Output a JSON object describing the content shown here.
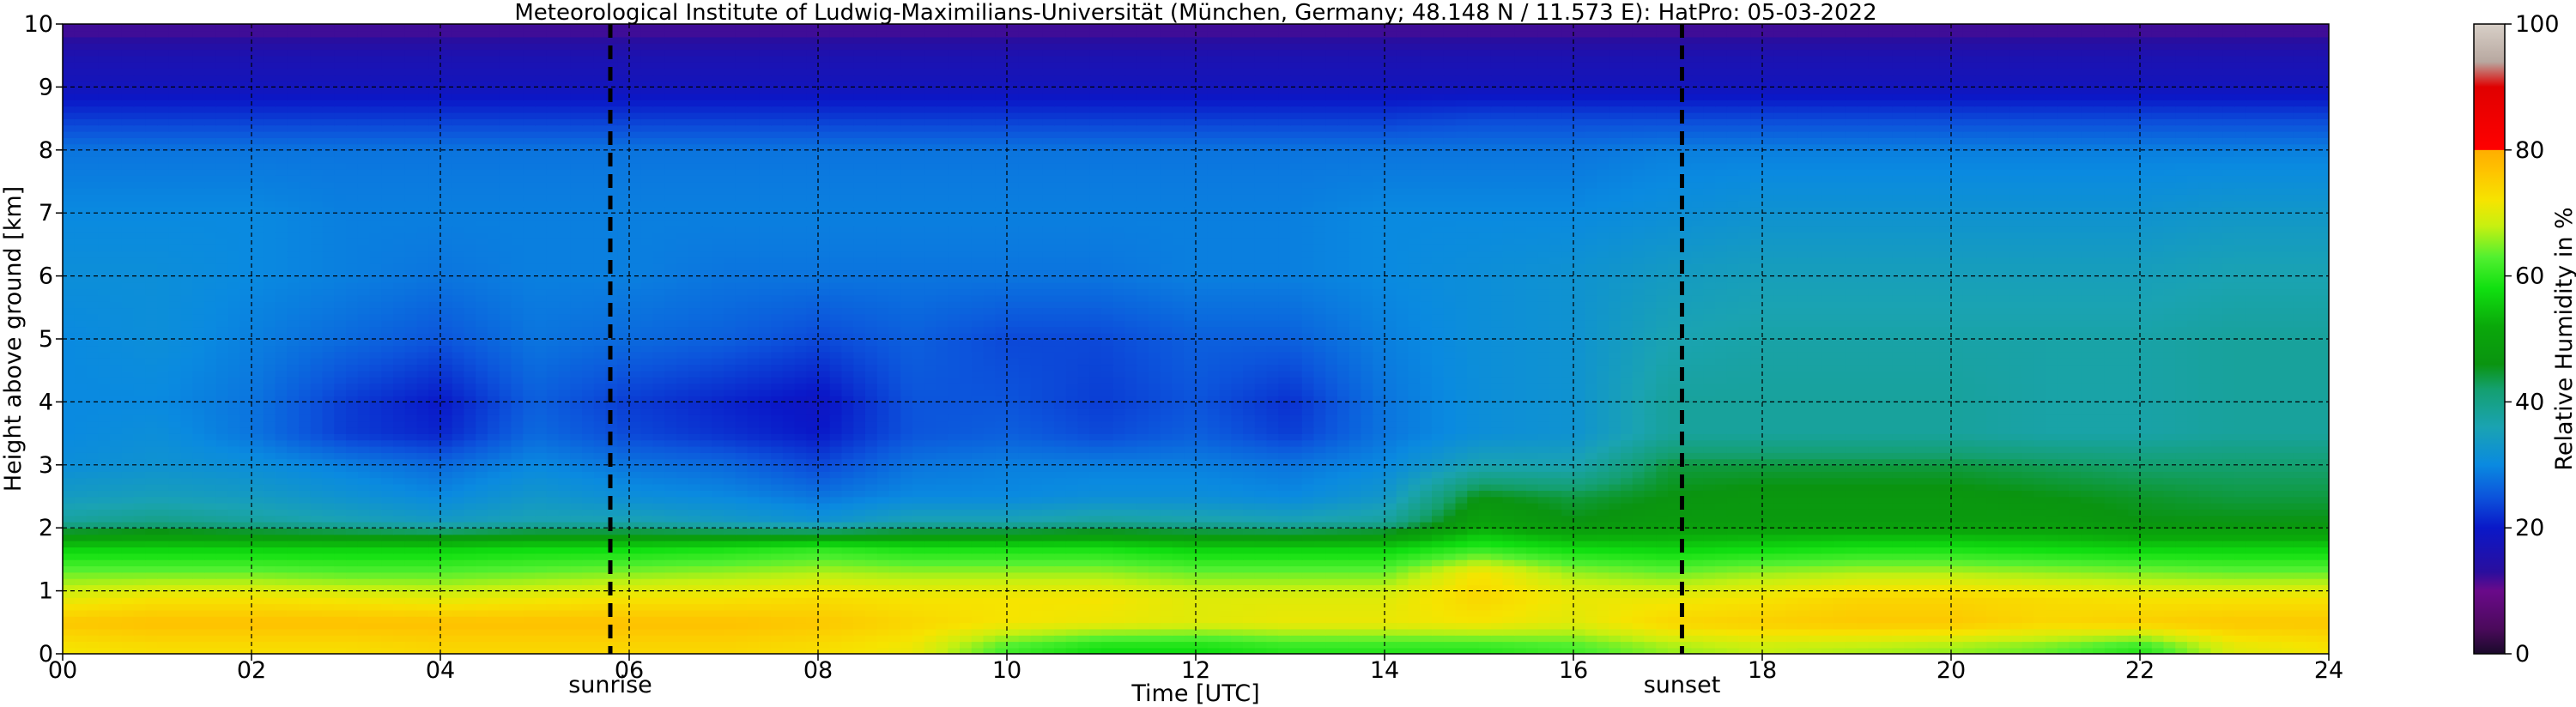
{
  "chart_data": {
    "type": "heatmap",
    "title": "Meteorological Institute of Ludwig-Maximilians-Universität (München, Germany; 48.148 N / 11.573 E):     HatPro: 05-03-2022",
    "xlabel": "Time [UTC]",
    "ylabel": "Height above ground [km]",
    "xlim": [
      0,
      24
    ],
    "ylim": [
      0,
      10
    ],
    "x_ticks": [
      "00",
      "02",
      "04",
      "06",
      "08",
      "10",
      "12",
      "14",
      "16",
      "18",
      "20",
      "22",
      "24"
    ],
    "x_tick_values": [
      0,
      2,
      4,
      6,
      8,
      10,
      12,
      14,
      16,
      18,
      20,
      22,
      24
    ],
    "y_ticks": [
      "0",
      "1",
      "2",
      "3",
      "4",
      "5",
      "6",
      "7",
      "8",
      "9",
      "10"
    ],
    "y_tick_values": [
      0,
      1,
      2,
      3,
      4,
      5,
      6,
      7,
      8,
      9,
      10
    ],
    "grid": true,
    "colorbar": {
      "label": "Relative Humidity in %",
      "range": [
        0,
        100
      ],
      "ticks": [
        "0",
        "20",
        "40",
        "60",
        "80",
        "100"
      ],
      "tick_values": [
        0,
        20,
        40,
        60,
        80,
        100
      ]
    },
    "annotations": [
      {
        "label": "sunrise",
        "x": 5.8
      },
      {
        "label": "sunset",
        "x": 17.15
      }
    ],
    "time_hours": [
      0,
      1,
      2,
      3,
      4,
      5,
      6,
      7,
      8,
      9,
      10,
      11,
      12,
      13,
      14,
      15,
      16,
      17,
      18,
      19,
      20,
      21,
      22,
      23,
      24
    ],
    "height_km": [
      0.1,
      0.5,
      0.9,
      1.3,
      1.7,
      2.1,
      2.5,
      3,
      3.5,
      4,
      5,
      6,
      7,
      8,
      8.5,
      9,
      9.5,
      9.85
    ],
    "relative_humidity": [
      [
        72,
        73,
        73,
        73,
        74,
        74,
        74,
        74,
        73,
        71,
        62,
        58,
        58,
        60,
        60,
        60,
        62,
        66,
        68,
        67,
        66,
        64,
        60,
        70,
        72
      ],
      [
        76,
        77,
        77,
        77,
        77,
        77,
        77,
        77,
        76,
        74,
        72,
        71,
        70,
        71,
        71,
        72,
        70,
        74,
        75,
        76,
        76,
        74,
        75,
        76,
        76
      ],
      [
        70,
        72,
        72,
        71,
        70,
        71,
        72,
        72,
        73,
        72,
        72,
        72,
        70,
        70,
        70,
        74,
        71,
        71,
        72,
        74,
        74,
        73,
        72,
        72,
        72
      ],
      [
        64,
        64,
        64,
        63,
        63,
        64,
        65,
        66,
        67,
        66,
        66,
        66,
        64,
        64,
        64,
        72,
        66,
        64,
        66,
        67,
        67,
        66,
        65,
        64,
        64
      ],
      [
        56,
        56,
        56,
        56,
        56,
        57,
        57,
        58,
        60,
        58,
        58,
        58,
        56,
        56,
        56,
        60,
        57,
        56,
        57,
        58,
        58,
        57,
        56,
        56,
        56
      ],
      [
        38,
        40,
        38,
        36,
        34,
        36,
        36,
        34,
        32,
        36,
        36,
        38,
        37,
        36,
        38,
        50,
        46,
        48,
        48,
        48,
        48,
        48,
        46,
        46,
        46
      ],
      [
        34,
        35,
        34,
        32,
        30,
        33,
        31,
        30,
        28,
        30,
        30,
        31,
        31,
        30,
        33,
        46,
        44,
        46,
        47,
        47,
        47,
        46,
        45,
        44,
        44
      ],
      [
        31,
        32,
        31,
        29,
        27,
        30,
        28,
        27,
        24,
        28,
        29,
        29,
        29,
        28,
        30,
        36,
        36,
        44,
        44,
        44,
        44,
        43,
        42,
        42,
        42
      ],
      [
        30,
        31,
        28,
        23,
        21,
        27,
        24,
        22,
        20,
        25,
        26,
        24,
        26,
        23,
        28,
        31,
        32,
        38,
        38,
        38,
        38,
        37,
        37,
        38,
        38
      ],
      [
        30,
        30,
        28,
        23,
        20,
        26,
        23,
        21,
        19,
        25,
        25,
        23,
        25,
        22,
        28,
        31,
        32,
        38,
        38,
        38,
        38,
        37,
        37,
        38,
        38
      ],
      [
        30,
        31,
        29,
        27,
        25,
        28,
        27,
        26,
        24,
        26,
        24,
        24,
        26,
        26,
        29,
        31,
        32,
        36,
        37,
        37,
        37,
        37,
        37,
        38,
        38
      ],
      [
        31,
        31,
        30,
        29,
        28,
        29,
        29,
        28,
        28,
        28,
        28,
        28,
        29,
        29,
        30,
        31,
        32,
        34,
        35,
        35,
        35,
        35,
        35,
        36,
        36
      ],
      [
        30,
        30,
        30,
        29,
        29,
        29,
        29,
        29,
        29,
        29,
        29,
        29,
        29,
        29,
        30,
        30,
        30,
        31,
        32,
        32,
        32,
        32,
        32,
        33,
        33
      ],
      [
        28,
        28,
        28,
        28,
        28,
        28,
        28,
        28,
        28,
        28,
        28,
        28,
        28,
        28,
        28,
        28,
        28,
        29,
        29,
        29,
        29,
        29,
        29,
        29,
        29
      ],
      [
        23,
        23,
        23,
        23,
        23,
        23,
        23,
        23,
        23,
        23,
        23,
        23,
        23,
        23,
        23,
        24,
        24,
        24,
        24,
        24,
        24,
        24,
        24,
        24,
        24
      ],
      [
        18,
        18,
        18,
        18,
        18,
        18,
        18,
        18,
        18,
        18,
        18,
        18,
        18,
        18,
        18,
        18,
        18,
        18,
        18,
        18,
        18,
        18,
        18,
        18,
        18
      ],
      [
        16,
        16,
        16,
        16,
        16,
        16,
        16,
        16,
        16,
        16,
        16,
        16,
        16,
        16,
        16,
        16,
        16,
        16,
        16,
        16,
        16,
        16,
        16,
        16,
        16
      ],
      [
        12,
        12,
        12,
        12,
        12,
        12,
        12,
        12,
        12,
        12,
        12,
        12,
        12,
        12,
        12,
        12,
        12,
        12,
        12,
        12,
        12,
        12,
        12,
        12,
        12
      ]
    ],
    "colormap": [
      {
        "v": 0,
        "c": "#1a0a2a"
      },
      {
        "v": 4,
        "c": "#4b0a5c"
      },
      {
        "v": 10,
        "c": "#6a0a8a"
      },
      {
        "v": 13,
        "c": "#2a0e9e"
      },
      {
        "v": 20,
        "c": "#0a18c8"
      },
      {
        "v": 25,
        "c": "#0c55dc"
      },
      {
        "v": 30,
        "c": "#0a8ae0"
      },
      {
        "v": 36,
        "c": "#1aa3b2"
      },
      {
        "v": 42,
        "c": "#14a070"
      },
      {
        "v": 46,
        "c": "#0a9410"
      },
      {
        "v": 52,
        "c": "#0aa80a"
      },
      {
        "v": 58,
        "c": "#10e010"
      },
      {
        "v": 63,
        "c": "#52f030"
      },
      {
        "v": 68,
        "c": "#c8f010"
      },
      {
        "v": 72,
        "c": "#f6e400"
      },
      {
        "v": 77,
        "c": "#ffc000"
      },
      {
        "v": 80,
        "c": "#ffae00"
      },
      {
        "v": 80.01,
        "c": "#ff0000"
      },
      {
        "v": 90,
        "c": "#e00000"
      },
      {
        "v": 94,
        "c": "#b8a8a0"
      },
      {
        "v": 100,
        "c": "#d8d0c8"
      }
    ]
  }
}
